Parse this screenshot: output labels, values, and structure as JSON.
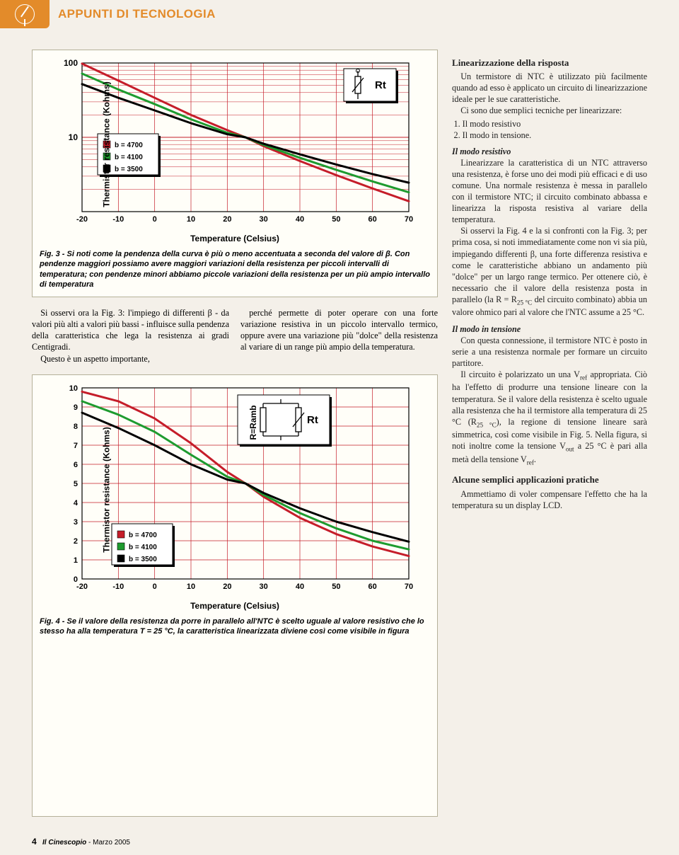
{
  "header": {
    "title": "APPUNTI DI TECNOLOGIA"
  },
  "fig3": {
    "type": "line-log",
    "ylabel": "Thermistor resistance (Kohms)",
    "xlabel": "Temperature (Celsius)",
    "xlim": [
      -20,
      70
    ],
    "ylim_log": [
      1,
      100
    ],
    "xticks": [
      -20,
      -10,
      0,
      10,
      20,
      30,
      40,
      50,
      60,
      70
    ],
    "yticks": [
      1,
      10,
      100
    ],
    "ytick_labels": [
      "",
      "10",
      "100"
    ],
    "grid_color": "#c51d2a",
    "background": "#fffef8",
    "series": [
      {
        "name": "b=4700",
        "color": "#c51d2a",
        "label": "b  =  4700",
        "points": [
          [
            -20,
            98
          ],
          [
            -10,
            58
          ],
          [
            0,
            34
          ],
          [
            10,
            20
          ],
          [
            20,
            12.5
          ],
          [
            25,
            10
          ],
          [
            30,
            7.6
          ],
          [
            40,
            4.8
          ],
          [
            50,
            3.1
          ],
          [
            60,
            2.05
          ],
          [
            70,
            1.38
          ]
        ]
      },
      {
        "name": "b=4100",
        "color": "#1e9b2f",
        "label": "b  =  4100",
        "points": [
          [
            -20,
            72
          ],
          [
            -10,
            44
          ],
          [
            0,
            28
          ],
          [
            10,
            17.5
          ],
          [
            20,
            11.5
          ],
          [
            25,
            10
          ],
          [
            30,
            7.9
          ],
          [
            40,
            5.3
          ],
          [
            50,
            3.65
          ],
          [
            60,
            2.55
          ],
          [
            70,
            1.82
          ]
        ]
      },
      {
        "name": "b=3500",
        "color": "#000000",
        "label": "b  =  3500",
        "points": [
          [
            -20,
            52
          ],
          [
            -10,
            34
          ],
          [
            0,
            23
          ],
          [
            10,
            15.5
          ],
          [
            20,
            11
          ],
          [
            25,
            10
          ],
          [
            30,
            8.2
          ],
          [
            40,
            5.9
          ],
          [
            50,
            4.3
          ],
          [
            60,
            3.2
          ],
          [
            70,
            2.45
          ]
        ]
      }
    ],
    "rt_label": "Rt",
    "legend_box_bg": "#ffffff",
    "caption": "Fig. 3 - Si noti come la pendenza della curva è più o meno accentuata a seconda del valore di β. Con pendenze maggiori possiamo avere maggiori variazioni della resistenza per piccoli intervalli di temperatura; con pendenze minori abbiamo piccole variazioni della resistenza per un più ampio intervallo di temperatura"
  },
  "fig4": {
    "type": "line-linear",
    "ylabel": "Thermistor resistance (Kohms)",
    "xlabel": "Temperature (Celsius)",
    "xlim": [
      -20,
      70
    ],
    "ylim": [
      0,
      10
    ],
    "xticks": [
      -20,
      -10,
      0,
      10,
      20,
      30,
      40,
      50,
      60,
      70
    ],
    "yticks": [
      0,
      1,
      2,
      3,
      4,
      5,
      6,
      7,
      8,
      9,
      10
    ],
    "grid_color": "#c51d2a",
    "background": "#fffef8",
    "series": [
      {
        "name": "b=4700",
        "color": "#c51d2a",
        "label": "b  =  4700",
        "points": [
          [
            -20,
            9.8
          ],
          [
            -10,
            9.3
          ],
          [
            0,
            8.4
          ],
          [
            10,
            7.1
          ],
          [
            20,
            5.6
          ],
          [
            25,
            5.0
          ],
          [
            30,
            4.3
          ],
          [
            40,
            3.2
          ],
          [
            50,
            2.35
          ],
          [
            60,
            1.7
          ],
          [
            70,
            1.2
          ]
        ]
      },
      {
        "name": "b=4100",
        "color": "#1e9b2f",
        "label": "b  =  4100",
        "points": [
          [
            -20,
            9.3
          ],
          [
            -10,
            8.6
          ],
          [
            0,
            7.7
          ],
          [
            10,
            6.5
          ],
          [
            20,
            5.35
          ],
          [
            25,
            5.0
          ],
          [
            30,
            4.4
          ],
          [
            40,
            3.45
          ],
          [
            50,
            2.65
          ],
          [
            60,
            2.0
          ],
          [
            70,
            1.55
          ]
        ]
      },
      {
        "name": "b=3500",
        "color": "#000000",
        "label": "b  =  3500",
        "points": [
          [
            -20,
            8.7
          ],
          [
            -10,
            7.9
          ],
          [
            0,
            7.0
          ],
          [
            10,
            6.0
          ],
          [
            20,
            5.2
          ],
          [
            25,
            5.0
          ],
          [
            30,
            4.5
          ],
          [
            40,
            3.7
          ],
          [
            50,
            3.0
          ],
          [
            60,
            2.45
          ],
          [
            70,
            1.95
          ]
        ]
      }
    ],
    "rt_label": "Rt",
    "ramb_label": "R=Ramb",
    "caption": "Fig. 4 - Se il valore della resistenza da porre in parallelo all'NTC è scelto uguale al valore resistivo che lo stesso ha alla temperatura T = 25 °C, la caratteristica linearizzata diviene così come visibile in figura"
  },
  "body_left": {
    "p1": "Si osservi ora la Fig. 3: l'impiego di differenti β - da valori più alti a valori più bassi - influisce sulla pendenza della caratteristica che lega la resistenza ai gradi Centigradi.",
    "p2": "Questo è un aspetto importante,"
  },
  "body_right": {
    "p1": "perché permette di poter operare con una forte variazione resistiva in un piccolo intervallo termico, oppure avere una variazione più \"dolce\" della resistenza al variare di un range più ampio della temperatura."
  },
  "right_col": {
    "h1": "Linearizzazione della risposta",
    "p1": "Un termistore di NTC è utilizzato più facilmente quando ad esso è applicato un circuito di linearizzazione ideale per le sue caratteristiche.",
    "p2": "Ci sono due semplici tecniche per linearizzare:",
    "li1": "Il modo resistivo",
    "li2": "Il modo in tensione.",
    "h2": "Il modo resistivo",
    "p3a": "Linearizzare la caratteristica di un NTC attraverso una resistenza, è forse uno dei modi più efficaci e di uso comune. Una normale resistenza è messa in parallelo con il termistore NTC; il circuito combinato abbassa e linearizza la risposta resistiva al variare della temperatura.",
    "p3b": "Si osservi la Fig. 4 e la si confronti con la Fig. 3; per prima cosa, si noti immediatamente come non vi sia più, impiegando differenti β, una forte differenza resistiva e come le caratteristiche abbiano un andamento più \"dolce\" per un largo range termico. Per ottenere ciò, è necessario che il valore della resistenza posta in parallelo (la R = R",
    "p3c": " del circuito combinato) abbia un valore ohmico pari al valore che l'NTC assume a 25 °C.",
    "h3": "Il modo in tensione",
    "p4a": "Con questa connessione, il termistore NTC è posto in serie a una resistenza normale per formare un circuito partitore.",
    "p4b": "Il circuito è polarizzato un una V",
    "p4c": " appropriata. Ciò ha l'effetto di produrre una tensione lineare con la temperatura. Se il valore della resistenza è scelto uguale alla resistenza che ha il termistore alla temperatura di 25 °C (R",
    "p4d": "), la regione di tensione lineare sarà simmetrica, così come visibile in Fig. 5. Nella figura, si noti inoltre come la tensione V",
    "p4e": " a 25 °C è pari alla metà della tensione V",
    "h4": "Alcune semplici applicazioni pratiche",
    "p5": "Ammettiamo di voler compensare l'effetto che ha la temperatura su un display LCD."
  },
  "footer": {
    "page": "4",
    "magazine": "Il Cinescopio",
    "issue": " - Marzo 2005"
  }
}
